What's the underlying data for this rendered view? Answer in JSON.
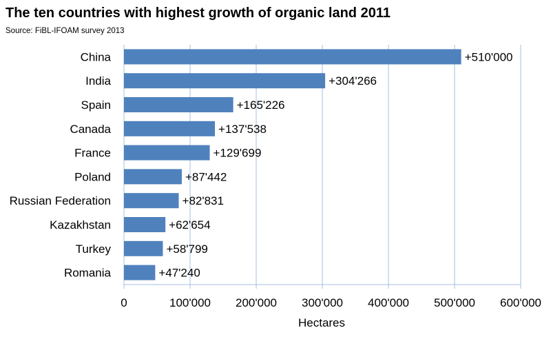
{
  "chart_data": {
    "type": "bar",
    "orientation": "horizontal",
    "title": "The ten countries with highest growth of organic land 2011",
    "subtitle": "Source: FiBL-IFOAM survey 2013",
    "xlabel": "Hectares",
    "ylabel": "",
    "categories": [
      "China",
      "India",
      "Spain",
      "Canada",
      "France",
      "Poland",
      "Russian Federation",
      "Kazakhstan",
      "Turkey",
      "Romania"
    ],
    "values": [
      510000,
      304266,
      165226,
      137538,
      129699,
      87442,
      82831,
      62654,
      58799,
      47240
    ],
    "data_labels": [
      "+510'000",
      "+304'266",
      "+165'226",
      "+137'538",
      "+129'699",
      "+87'442",
      "+82'831",
      "+62'654",
      "+58'799",
      "+47'240"
    ],
    "xlim": [
      0,
      600000
    ],
    "xticks": [
      0,
      100000,
      200000,
      300000,
      400000,
      500000,
      600000
    ],
    "xtick_labels": [
      "0",
      "100'000",
      "200'000",
      "300'000",
      "400'000",
      "500'000",
      "600'000"
    ],
    "grid": "vertical",
    "legend": "none",
    "bar_color": "#4f81bd",
    "grid_color": "#a6bfe0"
  }
}
